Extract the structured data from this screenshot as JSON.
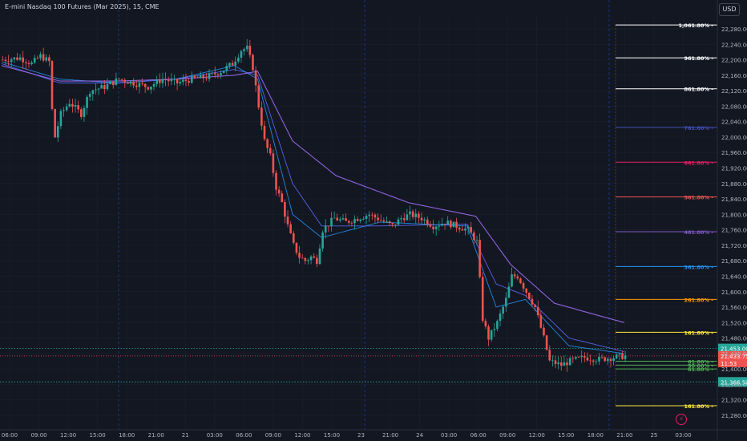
{
  "header": {
    "title": "E-mini Nasdaq 100 Futures (Mar 2025), 15, CME",
    "currency_button": "USD"
  },
  "colors": {
    "background": "#131722",
    "grid": "#1e222d",
    "up": "#26a69a",
    "down": "#ef5350",
    "ema_fast": "#2196f3",
    "ema_mid": "#5b6cff",
    "ema_slow": "#9c6cf2",
    "text": "#b2b5be"
  },
  "chart_data": {
    "type": "candlestick",
    "title": "E-mini Nasdaq 100 Futures (Mar 2025), 15, CME",
    "y_axis": {
      "ticks": [
        22280,
        22240,
        22200,
        22160,
        22120,
        22080,
        22040,
        22000,
        21960,
        21920,
        21880,
        21840,
        21800,
        21760,
        21720,
        21680,
        21640,
        21600,
        21560,
        21520,
        21480,
        21440,
        21400,
        21360,
        21320,
        21280
      ],
      "range": [
        21265,
        22300
      ]
    },
    "x_axis": {
      "labels": [
        "06:00",
        "09:00",
        "12:00",
        "15:00",
        "18:00",
        "21:00",
        "21",
        "03:00",
        "06:00",
        "09:00",
        "12:00",
        "15:00",
        "23",
        "21:00",
        "24",
        "03:00",
        "06:00",
        "09:00",
        "12:00",
        "15:00",
        "18:00",
        "21:00",
        "25",
        "03:00"
      ]
    },
    "price_path": [
      [
        0,
        22200
      ],
      [
        6,
        22205
      ],
      [
        10,
        22190
      ],
      [
        13,
        22210
      ],
      [
        16,
        22195
      ],
      [
        17,
        22070
      ],
      [
        18,
        22000
      ],
      [
        20,
        22060
      ],
      [
        23,
        22090
      ],
      [
        27,
        22060
      ],
      [
        30,
        22120
      ],
      [
        35,
        22130
      ],
      [
        40,
        22150
      ],
      [
        45,
        22140
      ],
      [
        50,
        22130
      ],
      [
        55,
        22150
      ],
      [
        60,
        22140
      ],
      [
        65,
        22150
      ],
      [
        70,
        22155
      ],
      [
        75,
        22170
      ],
      [
        79,
        22190
      ],
      [
        82,
        22225
      ],
      [
        84,
        22230
      ],
      [
        86,
        22180
      ],
      [
        88,
        22080
      ],
      [
        90,
        21990
      ],
      [
        92,
        21950
      ],
      [
        94,
        21870
      ],
      [
        96,
        21830
      ],
      [
        98,
        21770
      ],
      [
        100,
        21720
      ],
      [
        102,
        21690
      ],
      [
        104,
        21680
      ],
      [
        106,
        21690
      ],
      [
        108,
        21680
      ],
      [
        110,
        21760
      ],
      [
        114,
        21790
      ],
      [
        118,
        21780
      ],
      [
        122,
        21790
      ],
      [
        126,
        21800
      ],
      [
        130,
        21785
      ],
      [
        134,
        21770
      ],
      [
        137,
        21790
      ],
      [
        140,
        21800
      ],
      [
        144,
        21790
      ],
      [
        148,
        21770
      ],
      [
        152,
        21780
      ],
      [
        156,
        21770
      ],
      [
        160,
        21760
      ],
      [
        163,
        21730
      ],
      [
        165,
        21530
      ],
      [
        167,
        21480
      ],
      [
        170,
        21520
      ],
      [
        173,
        21580
      ],
      [
        175,
        21640
      ],
      [
        177,
        21640
      ],
      [
        180,
        21600
      ],
      [
        183,
        21560
      ],
      [
        186,
        21480
      ],
      [
        188,
        21420
      ],
      [
        190,
        21415
      ],
      [
        192,
        21410
      ],
      [
        195,
        21420
      ],
      [
        200,
        21430
      ],
      [
        205,
        21425
      ],
      [
        210,
        21430
      ],
      [
        214,
        21433.75
      ]
    ],
    "series": [
      {
        "name": "EMA 20",
        "values": [
          [
            0,
            22195
          ],
          [
            20,
            22150
          ],
          [
            40,
            22140
          ],
          [
            60,
            22150
          ],
          [
            80,
            22185
          ],
          [
            88,
            22150
          ],
          [
            100,
            21800
          ],
          [
            110,
            21740
          ],
          [
            130,
            21780
          ],
          [
            160,
            21770
          ],
          [
            170,
            21560
          ],
          [
            180,
            21580
          ],
          [
            195,
            21460
          ],
          [
            214,
            21440
          ]
        ]
      },
      {
        "name": "EMA 50",
        "values": [
          [
            0,
            22190
          ],
          [
            20,
            22140
          ],
          [
            40,
            22140
          ],
          [
            60,
            22150
          ],
          [
            80,
            22175
          ],
          [
            88,
            22160
          ],
          [
            100,
            21880
          ],
          [
            110,
            21770
          ],
          [
            130,
            21770
          ],
          [
            160,
            21775
          ],
          [
            170,
            21620
          ],
          [
            180,
            21590
          ],
          [
            195,
            21480
          ],
          [
            214,
            21445
          ]
        ]
      },
      {
        "name": "EMA 200",
        "values": [
          [
            0,
            22185
          ],
          [
            20,
            22145
          ],
          [
            40,
            22145
          ],
          [
            60,
            22150
          ],
          [
            80,
            22160
          ],
          [
            88,
            22170
          ],
          [
            100,
            21990
          ],
          [
            115,
            21900
          ],
          [
            140,
            21830
          ],
          [
            163,
            21795
          ],
          [
            175,
            21670
          ],
          [
            190,
            21570
          ],
          [
            214,
            21520
          ]
        ]
      }
    ],
    "fib_levels": [
      {
        "label": "1,061.80%",
        "price": 22290,
        "color": "#ffffff"
      },
      {
        "label": "961.80%",
        "price": 22205,
        "color": "#ffffff"
      },
      {
        "label": "861.80%",
        "price": 22125,
        "color": "#ffffff"
      },
      {
        "label": "761.80%",
        "price": 22025,
        "color": "#3f51b5"
      },
      {
        "label": "661.80%",
        "price": 21935,
        "color": "#e91e63"
      },
      {
        "label": "561.80%",
        "price": 21845,
        "color": "#ef5350"
      },
      {
        "label": "461.80%",
        "price": 21755,
        "color": "#7e57c2"
      },
      {
        "label": "361.80%",
        "price": 21665,
        "color": "#2196f3"
      },
      {
        "label": "261.80%",
        "price": 21580,
        "color": "#ff9800"
      },
      {
        "label": "161.80%",
        "price": 21495,
        "color": "#ffeb3b"
      },
      {
        "label": "61.80%",
        "price": 21420,
        "color": "#4caf50"
      },
      {
        "label": "50.00%",
        "price": 21410,
        "color": "#4caf50"
      },
      {
        "label": "61.80%",
        "price": 21400,
        "color": "#4caf50"
      },
      {
        "label": "161.80%",
        "price": 21305,
        "color": "#ffeb3b"
      }
    ],
    "horizontal_lines": [
      {
        "price": 21453.0,
        "label": "21,453.00",
        "color": "#26a69a"
      },
      {
        "price": 21366.5,
        "label": "21,366.50",
        "color": "#26a69a"
      }
    ],
    "last_price": {
      "label": "21,433.75",
      "countdown": "11:53",
      "color": "#ef5350"
    },
    "session_breaks_x": [
      148,
      455,
      760
    ]
  }
}
